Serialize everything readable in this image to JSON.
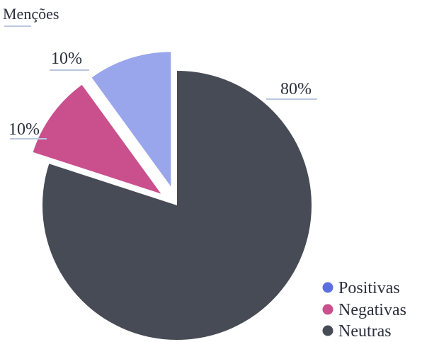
{
  "chart_data": {
    "type": "pie",
    "title": "Menções",
    "categories": [
      "Positivas",
      "Negativas",
      "Neutras"
    ],
    "values": [
      10,
      10,
      80
    ],
    "data_labels": [
      "10%",
      "10%",
      "80%"
    ],
    "colors": [
      "#9aa6ec",
      "#c9508d",
      "#474b55"
    ],
    "exploded": [
      "Positivas",
      "Negativas"
    ],
    "legend_position": "bottom-right",
    "start_angle_deg": 0,
    "direction": "counterclockwise"
  },
  "legend": {
    "items": [
      {
        "label": "Positivas",
        "color": "#5d6fe0"
      },
      {
        "label": "Negativas",
        "color": "#c9508d"
      },
      {
        "label": "Neutras",
        "color": "#474b55"
      }
    ]
  },
  "colors": {
    "leader_line": "#b9c8de",
    "text": "#2b2f3c"
  }
}
